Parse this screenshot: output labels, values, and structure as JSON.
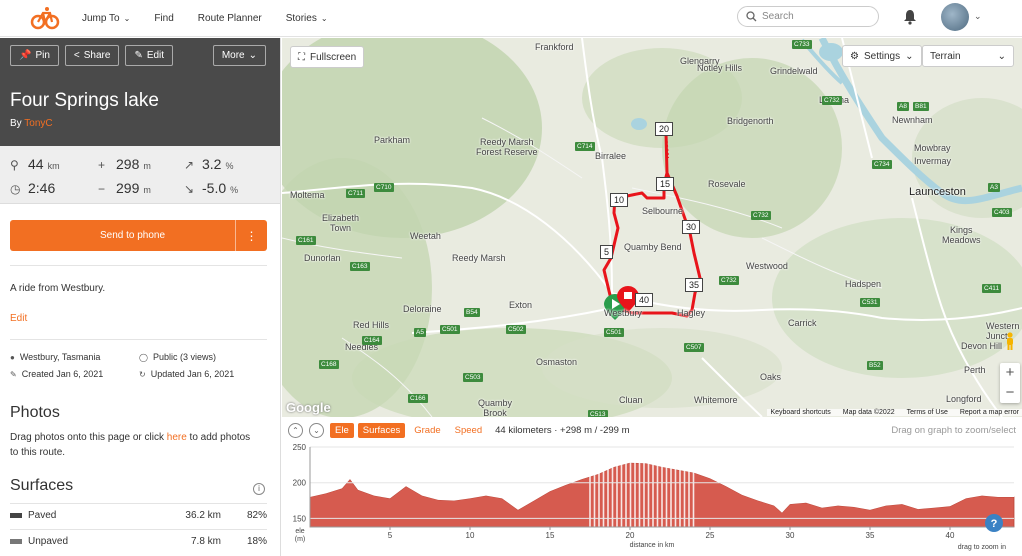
{
  "nav": {
    "items": [
      {
        "label": "Jump To",
        "has_dropdown": true
      },
      {
        "label": "Find",
        "has_dropdown": false
      },
      {
        "label": "Route Planner",
        "has_dropdown": false
      },
      {
        "label": "Stories",
        "has_dropdown": true
      }
    ],
    "search_placeholder": "Search"
  },
  "route": {
    "buttons": {
      "pin": "Pin",
      "share": "Share",
      "edit": "Edit",
      "more": "More"
    },
    "title": "Four Springs lake",
    "by_prefix": "By",
    "author": "TonyC",
    "stats": {
      "distance": "44",
      "distance_unit": "km",
      "time": "2:46",
      "elev_gain": "298",
      "elev_gain_unit": "m",
      "elev_loss": "299",
      "elev_loss_unit": "m",
      "grade_up": "3.2",
      "grade_up_unit": "%",
      "grade_down": "-5.0",
      "grade_down_unit": "%"
    },
    "send_to_phone": "Send to phone",
    "description": "A ride from Westbury.",
    "edit_link": "Edit",
    "location": "Westbury, Tasmania",
    "visibility": "Public (3 views)",
    "created": "Created Jan 6, 2021",
    "updated": "Updated Jan 6, 2021"
  },
  "photos": {
    "heading": "Photos",
    "text_before": "Drag photos onto this page or click ",
    "link": "here",
    "text_after": " to add photos to this route."
  },
  "surfaces": {
    "heading": "Surfaces",
    "rows": [
      {
        "name": "Paved",
        "km": "36.2 km",
        "pct": "82%"
      },
      {
        "name": "Unpaved",
        "km": "7.8 km",
        "pct": "18%"
      }
    ]
  },
  "map": {
    "fullscreen": "Fullscreen",
    "settings": "Settings",
    "layer": "Terrain",
    "places": {
      "frankford": "Frankford",
      "glengarry": "Glengarry",
      "notley_hills": "Notley Hills",
      "grindelwald": "Grindelwald",
      "legana": "Legana",
      "bridgenorth": "Bridgenorth",
      "newnham": "Newnham",
      "mowbray": "Mowbray",
      "invermay": "Invermay",
      "launceston": "Launceston",
      "parkham": "Parkham",
      "reedy_marsh_forest": "Reedy Marsh\nForest Reserve",
      "birralee": "Birralee",
      "rosevale": "Rosevale",
      "moltema": "Moltema",
      "elizabeth_town": "Elizabeth\nTown",
      "selbourne": "Selbourne",
      "weetah": "Weetah",
      "quamby_bend": "Quamby Bend",
      "kings_meadows": "Kings\nMeadows",
      "dunorlan": "Dunorlan",
      "reedy_marsh": "Reedy Marsh",
      "westwood": "Westwood",
      "hadspen": "Hadspen",
      "deloraine": "Deloraine",
      "exton": "Exton",
      "westbury": "Westbury",
      "hagley": "Hagley",
      "carrick": "Carrick",
      "red_hills": "Red Hills",
      "western_junction": "Western\nJunct",
      "needles": "Needles",
      "devon_hill": "Devon Hill",
      "osmaston": "Osmaston",
      "oaks": "Oaks",
      "perth": "Perth",
      "quamby_brook": "Quamby\nBrook",
      "cluan": "Cluan",
      "whitemore": "Whitemore",
      "longford": "Longford"
    },
    "km_markers": [
      "5",
      "10",
      "15",
      "20",
      "30",
      "35",
      "40"
    ],
    "attribution": {
      "shortcuts": "Keyboard shortcuts",
      "mapdata": "Map data ©2022",
      "terms": "Terms of Use",
      "report": "Report a map error"
    },
    "google": "Google"
  },
  "elevation": {
    "tabs": [
      "Ele",
      "Surfaces",
      "Grade",
      "Speed"
    ],
    "active_tabs": [
      "Ele",
      "Surfaces"
    ],
    "summary": "44 kilometers · +298 m / -299 m",
    "hint": "Drag on graph to zoom/select",
    "ylabel": "ele\n(m)",
    "xlabel": "distance in km",
    "zoom_hint": "drag to zoom in"
  },
  "chart_data": {
    "type": "area",
    "xlabel": "distance in km",
    "ylabel": "ele (m)",
    "xlim": [
      0,
      44
    ],
    "ylim": [
      138,
      250
    ],
    "yticks": [
      150,
      200,
      250
    ],
    "xticks": [
      5,
      10,
      15,
      20,
      25,
      30,
      35,
      40
    ],
    "x": [
      0,
      1,
      2,
      2.5,
      3,
      4,
      5,
      6,
      7,
      8,
      9,
      10,
      11,
      12,
      12.5,
      13,
      14,
      15,
      16,
      17,
      18,
      19,
      20,
      21,
      22,
      23,
      24,
      25,
      26,
      27,
      28,
      29,
      29.5,
      30,
      31,
      32,
      33,
      34,
      35,
      36,
      37,
      38,
      39,
      40,
      41,
      42,
      43,
      44
    ],
    "values": [
      180,
      185,
      192,
      205,
      190,
      182,
      178,
      195,
      182,
      176,
      175,
      178,
      182,
      178,
      170,
      162,
      175,
      188,
      197,
      205,
      212,
      222,
      228,
      227,
      222,
      218,
      214,
      206,
      195,
      183,
      175,
      168,
      158,
      170,
      172,
      165,
      168,
      166,
      162,
      168,
      170,
      163,
      165,
      167,
      178,
      182,
      180,
      180
    ],
    "unpaved_ranges": [
      [
        17.5,
        24.2
      ]
    ]
  }
}
